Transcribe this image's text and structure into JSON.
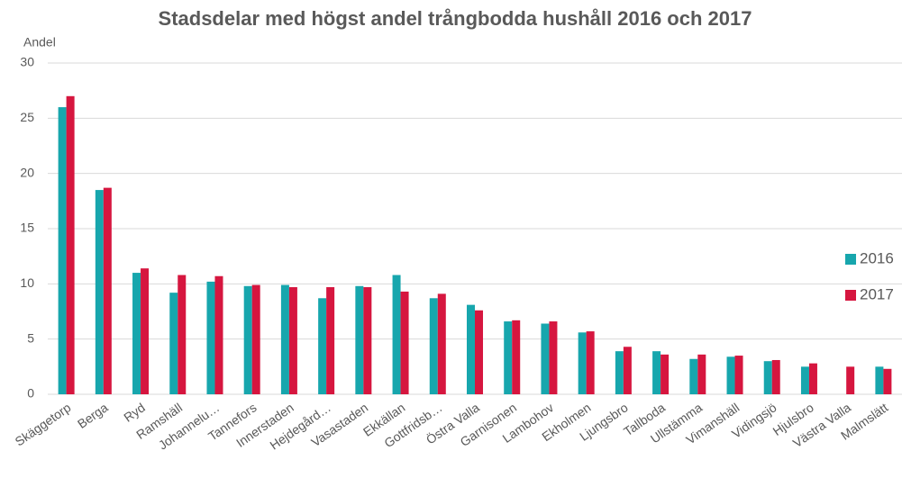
{
  "chart_data": {
    "type": "bar",
    "title": "Stadsdelar med högst andel trångbodda hushåll 2016 och 2017",
    "y_label": "Andel",
    "categories": [
      "Skäggetorp",
      "Berga",
      "Ryd",
      "Ramshäll",
      "Johannelu…",
      "Tannefors",
      "Innerstaden",
      "Hejdegård…",
      "Vasastaden",
      "Ekkällan",
      "Gottfridsb…",
      "Östra Valla",
      "Garnisonen",
      "Lambohov",
      "Ekholmen",
      "Ljungsbro",
      "Tallboda",
      "Ullstämma",
      "Vimanshäll",
      "Vidingsjö",
      "Hjulsbro",
      "Västra Valla",
      "Malmslätt"
    ],
    "series": [
      {
        "name": "2016",
        "color": "#17a6ad",
        "values": [
          26,
          18.5,
          11,
          9.2,
          10.2,
          9.8,
          9.9,
          8.7,
          9.8,
          10.8,
          8.7,
          8.1,
          6.6,
          6.4,
          5.6,
          3.9,
          3.9,
          3.2,
          3.4,
          3.0,
          2.5,
          null,
          2.5
        ]
      },
      {
        "name": "2017",
        "color": "#d6163f",
        "values": [
          27,
          18.7,
          11.4,
          10.8,
          10.7,
          9.9,
          9.7,
          9.7,
          9.7,
          9.3,
          9.1,
          7.6,
          6.7,
          6.6,
          5.7,
          4.3,
          3.6,
          3.6,
          3.5,
          3.1,
          2.8,
          2.5,
          2.3
        ]
      }
    ],
    "ylim": [
      0,
      30
    ],
    "yticks": [
      0,
      5,
      10,
      15,
      20,
      25,
      30
    ],
    "grid": true,
    "legend": "right"
  }
}
